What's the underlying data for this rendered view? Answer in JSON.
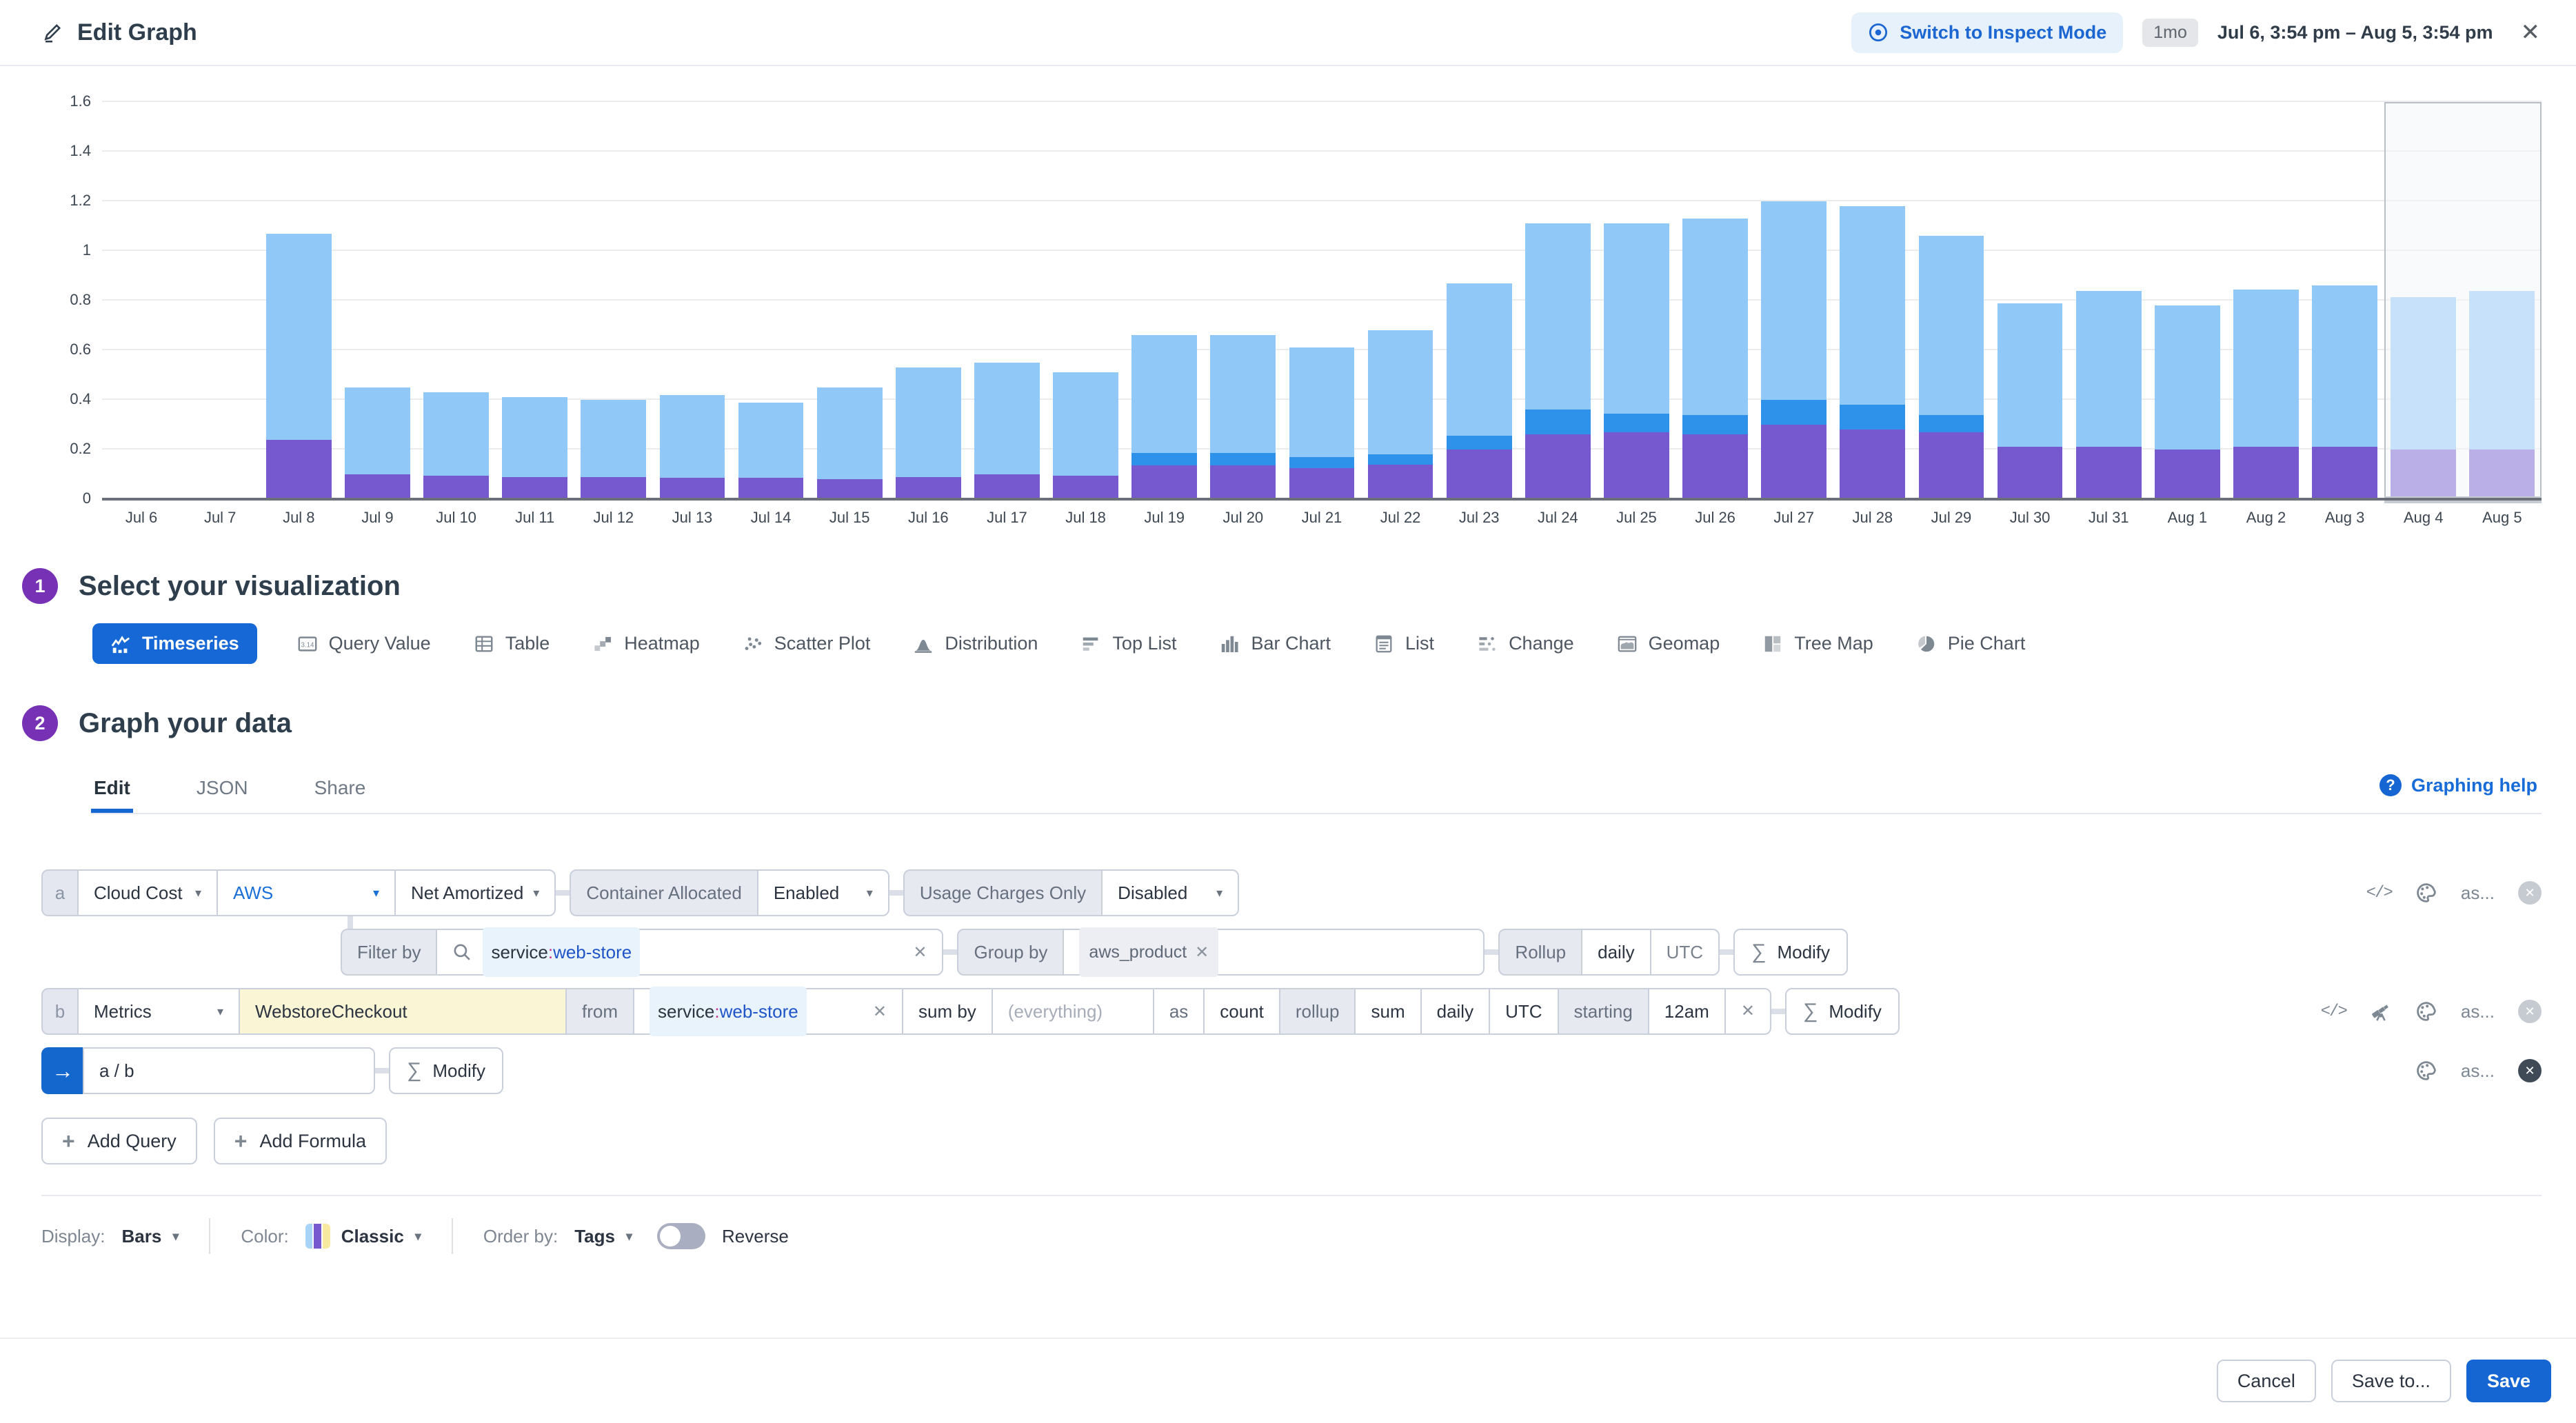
{
  "header": {
    "title": "Edit Graph",
    "inspect_button": "Switch to Inspect Mode",
    "range_badge": "1mo",
    "range_text": "Jul 6, 3:54 pm – Aug 5, 3:54 pm",
    "close": "✕"
  },
  "chart_data": {
    "type": "bar",
    "stacked": true,
    "categories": [
      "Jul 6",
      "Jul 7",
      "Jul 8",
      "Jul 9",
      "Jul 10",
      "Jul 11",
      "Jul 12",
      "Jul 13",
      "Jul 14",
      "Jul 15",
      "Jul 16",
      "Jul 17",
      "Jul 18",
      "Jul 19",
      "Jul 20",
      "Jul 21",
      "Jul 22",
      "Jul 23",
      "Jul 24",
      "Jul 25",
      "Jul 26",
      "Jul 27",
      "Jul 28",
      "Jul 29",
      "Jul 30",
      "Jul 31",
      "Aug 1",
      "Aug 2",
      "Aug 3",
      "Aug 4",
      "Aug 5"
    ],
    "series": [
      {
        "name": "purple",
        "color": "#7659cf",
        "values": [
          0,
          0,
          0.24,
          0.1,
          0.095,
          0.09,
          0.09,
          0.085,
          0.085,
          0.08,
          0.09,
          0.1,
          0.095,
          0.135,
          0.135,
          0.125,
          0.14,
          0.2,
          0.26,
          0.27,
          0.26,
          0.3,
          0.28,
          0.27,
          0.21,
          0.21,
          0.2,
          0.21,
          0.21,
          0.2,
          0.2
        ]
      },
      {
        "name": "mid-blue",
        "color": "#2f92ea",
        "values": [
          0,
          0,
          0,
          0,
          0,
          0,
          0,
          0,
          0,
          0,
          0,
          0,
          0,
          0.05,
          0.05,
          0.045,
          0.04,
          0.055,
          0.1,
          0.075,
          0.08,
          0.1,
          0.1,
          0.07,
          0,
          0,
          0,
          0,
          0,
          0,
          0
        ]
      },
      {
        "name": "light-blue",
        "color": "#90c8f8",
        "values": [
          0,
          0,
          0.83,
          0.35,
          0.335,
          0.32,
          0.31,
          0.335,
          0.305,
          0.37,
          0.44,
          0.45,
          0.415,
          0.475,
          0.475,
          0.44,
          0.5,
          0.615,
          0.75,
          0.765,
          0.79,
          0.8,
          0.8,
          0.72,
          0.58,
          0.63,
          0.58,
          0.635,
          0.65,
          0.615,
          0.64
        ]
      }
    ],
    "ylim": [
      0,
      1.6
    ],
    "yticks": [
      0,
      0.2,
      0.4,
      0.6,
      0.8,
      1,
      1.2,
      1.4,
      1.6
    ],
    "grid": "horizontal",
    "legend": "none",
    "highlight_region": {
      "from": "Aug 4",
      "to": "end"
    }
  },
  "section1": {
    "number": "1",
    "title": "Select your visualization",
    "options": [
      {
        "label": "Timeseries",
        "icon": "timeseries",
        "selected": true
      },
      {
        "label": "Query Value",
        "icon": "query-value",
        "selected": false
      },
      {
        "label": "Table",
        "icon": "table",
        "selected": false
      },
      {
        "label": "Heatmap",
        "icon": "heatmap",
        "selected": false
      },
      {
        "label": "Scatter Plot",
        "icon": "scatter-plot",
        "selected": false
      },
      {
        "label": "Distribution",
        "icon": "distribution",
        "selected": false
      },
      {
        "label": "Top List",
        "icon": "top-list",
        "selected": false
      },
      {
        "label": "Bar Chart",
        "icon": "bar-chart",
        "selected": false
      },
      {
        "label": "List",
        "icon": "list",
        "selected": false
      },
      {
        "label": "Change",
        "icon": "change",
        "selected": false
      },
      {
        "label": "Geomap",
        "icon": "geomap",
        "selected": false
      },
      {
        "label": "Tree Map",
        "icon": "tree-map",
        "selected": false
      },
      {
        "label": "Pie Chart",
        "icon": "pie-chart",
        "selected": false
      }
    ]
  },
  "section2": {
    "number": "2",
    "title": "Graph your data",
    "tabs": [
      "Edit",
      "JSON",
      "Share"
    ],
    "active_tab": "Edit",
    "help_link": "Graphing help"
  },
  "query_a": {
    "letter": "a",
    "source": "Cloud Cost",
    "provider": "AWS",
    "cost_type": "Net Amortized",
    "container_allocated_label": "Container Allocated",
    "container_allocated_value": "Enabled",
    "usage_charges_label": "Usage Charges Only",
    "usage_charges_value": "Disabled",
    "as_label": "as..."
  },
  "filter_row": {
    "filter_by_label": "Filter by",
    "filter_tag": {
      "key": "service",
      "sep": ":",
      "value": "web-store"
    },
    "group_by_label": "Group by",
    "group_by_tag": "aws_product",
    "rollup_label": "Rollup",
    "rollup_interval": "daily",
    "rollup_tz": "UTC",
    "sigma": "∑",
    "modify_label": "Modify"
  },
  "query_b": {
    "letter": "b",
    "source": "Metrics",
    "metric": "WebstoreCheckout",
    "from_label": "from",
    "from_tag": {
      "key": "service",
      "sep": ":",
      "value": "web-store"
    },
    "sum_by_label": "sum by",
    "sum_by_value": "(everything)",
    "as_label": "as",
    "as_value": "count",
    "rollup_label": "rollup",
    "rollup_fn": "sum",
    "rollup_interval": "daily",
    "rollup_tz": "UTC",
    "starting_label": "starting",
    "starting_value": "12am",
    "sigma": "∑",
    "modify_label": "Modify",
    "as_ellipsis": "as..."
  },
  "formula": {
    "arrow": "→",
    "expression": "a / b",
    "sigma": "∑",
    "modify_label": "Modify",
    "as_label": "as..."
  },
  "actions": {
    "add_query": "Add Query",
    "add_formula": "Add Formula"
  },
  "display_row": {
    "display_label": "Display:",
    "display_value": "Bars",
    "color_label": "Color:",
    "color_value": "Classic",
    "order_by_label": "Order by:",
    "order_by_value": "Tags",
    "reverse_label": "Reverse",
    "swatch_colors": [
      "#a8d4f8",
      "#7659cf",
      "#f8e9a0"
    ]
  },
  "footer": {
    "cancel": "Cancel",
    "save_to": "Save to...",
    "save": "Save"
  },
  "colors": {
    "accent_blue": "#1565d3",
    "badge_purple": "#7631b5",
    "link_blue": "#176cd8"
  }
}
